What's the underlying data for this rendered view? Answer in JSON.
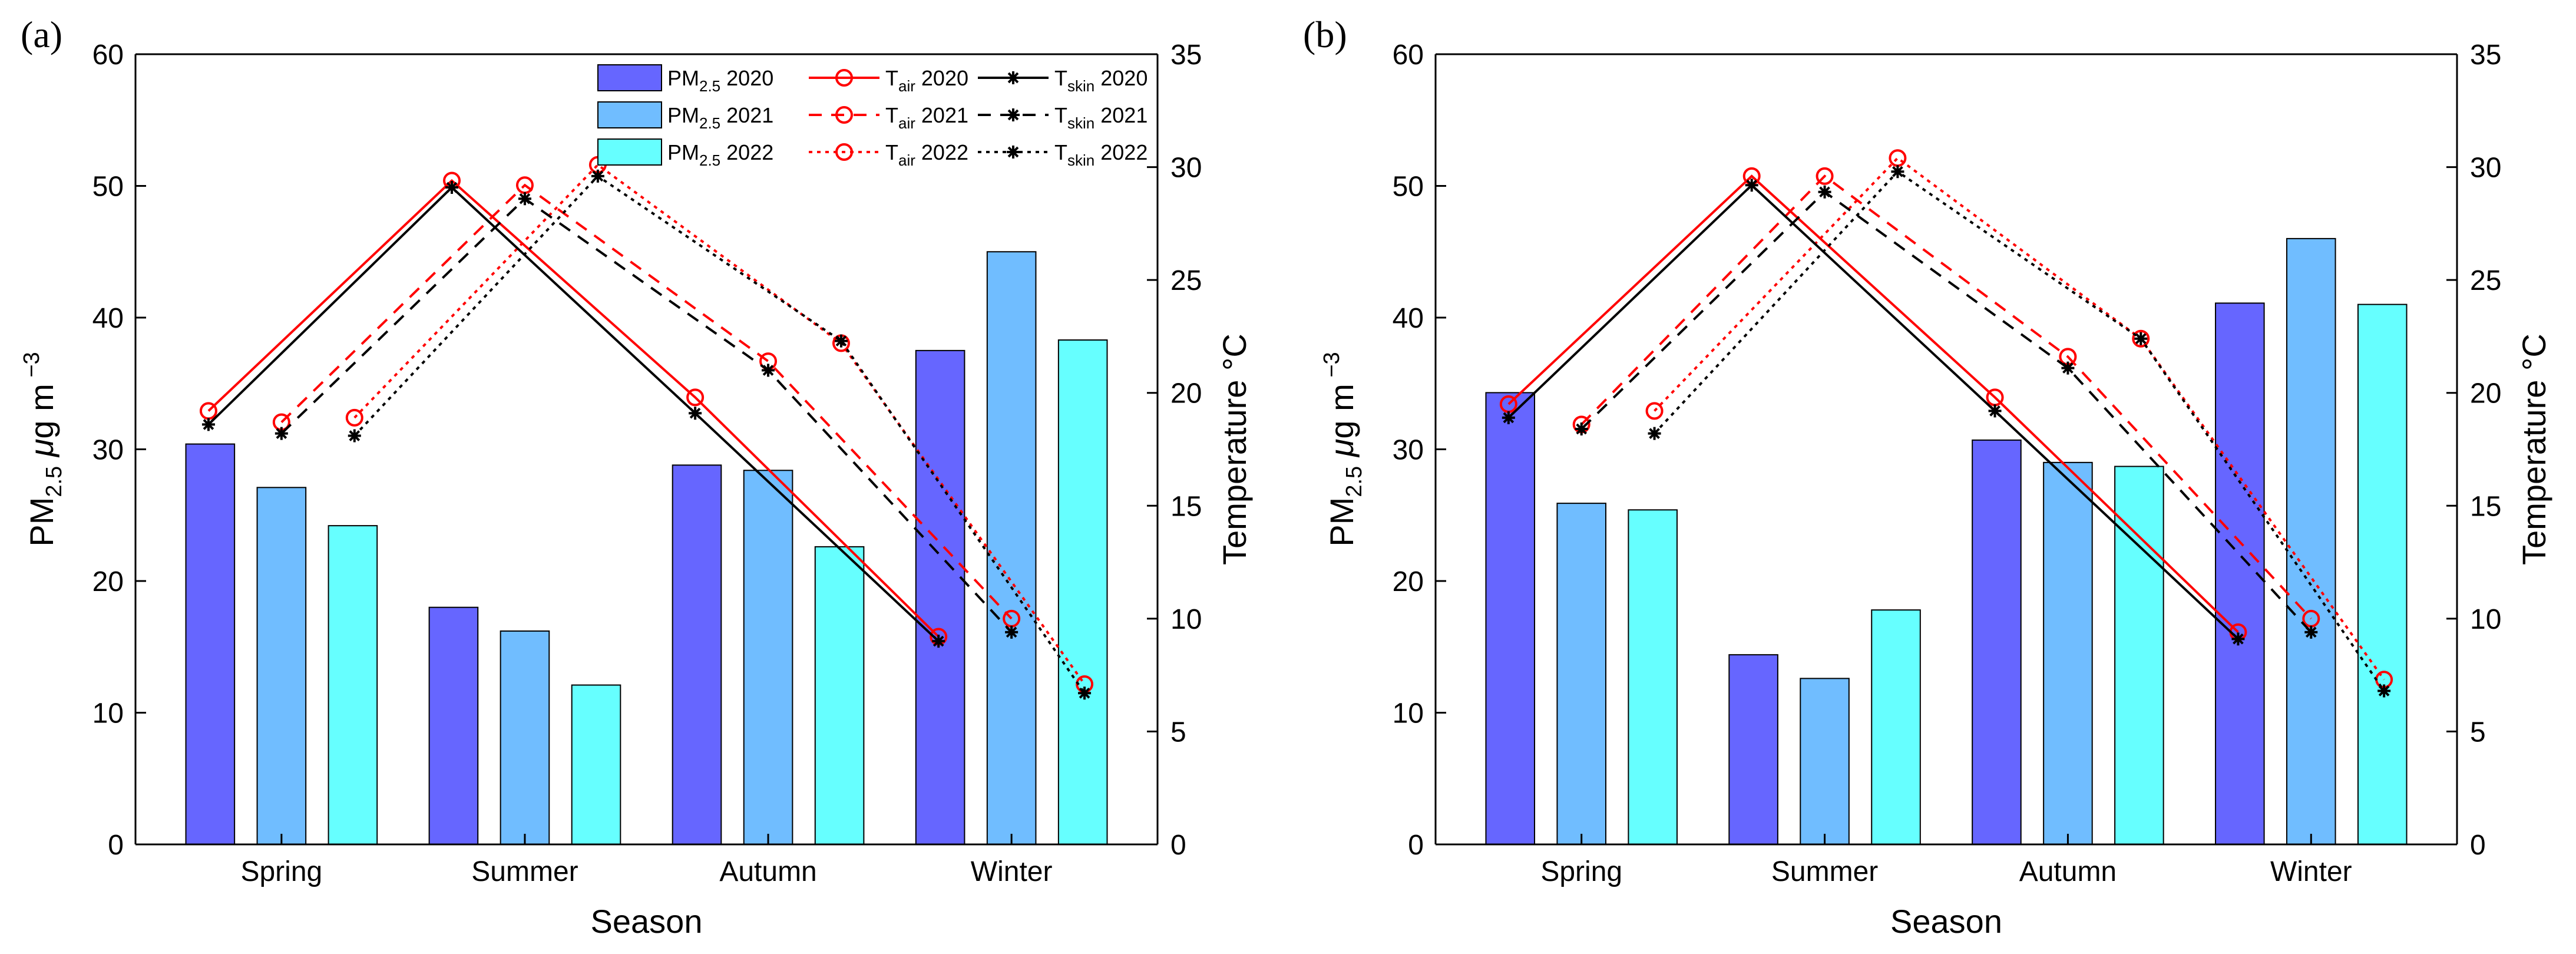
{
  "figure": {
    "shared": {
      "categories": [
        "Spring",
        "Summer",
        "Autumn",
        "Winter"
      ],
      "xlabel": "Season",
      "ylabel_left": "PM",
      "ylabel_left_sub": "2.5",
      "ylabel_left_unit_mu": "μ",
      "ylabel_left_unit": "g m",
      "ylabel_left_sup": "−3",
      "ylabel_right": "Temperature °C",
      "ylim_left": [
        0,
        60
      ],
      "yticks_left": [
        "0",
        "10",
        "20",
        "30",
        "40",
        "50",
        "60"
      ],
      "ylim_right": [
        0,
        35
      ],
      "yticks_right": [
        "0",
        "5",
        "10",
        "15",
        "20",
        "25",
        "30",
        "35"
      ]
    },
    "legend": {
      "pm": [
        {
          "base": "PM",
          "sub": "2.5",
          "year": " 2020"
        },
        {
          "base": "PM",
          "sub": "2.5",
          "year": " 2021"
        },
        {
          "base": "PM",
          "sub": "2.5",
          "year": " 2022"
        }
      ],
      "tair": [
        {
          "base": "T",
          "sub": "air",
          "year": " 2020"
        },
        {
          "base": "T",
          "sub": "air",
          "year": " 2021"
        },
        {
          "base": "T",
          "sub": "air",
          "year": " 2022"
        }
      ],
      "tskin": [
        {
          "base": "T",
          "sub": "skin",
          "year": " 2020"
        },
        {
          "base": "T",
          "sub": "skin",
          "year": " 2021"
        },
        {
          "base": "T",
          "sub": "skin",
          "year": " 2022"
        }
      ]
    },
    "colors": {
      "pm2020": "#6666ff",
      "pm2021": "#70bdff",
      "pm2022": "#66ffff",
      "tair": "#ff0000",
      "tskin": "#000000"
    }
  },
  "chart_data": [
    {
      "panel_label": "(a)",
      "type": "bar+line",
      "categories": [
        "Spring",
        "Summer",
        "Autumn",
        "Winter"
      ],
      "bar_series": [
        {
          "name": "PM2.5 2020",
          "values": [
            30.4,
            18.0,
            28.8,
            37.5
          ]
        },
        {
          "name": "PM2.5 2021",
          "values": [
            27.1,
            16.2,
            28.4,
            45.0
          ]
        },
        {
          "name": "PM2.5 2022",
          "values": [
            24.2,
            12.1,
            22.6,
            38.3
          ]
        }
      ],
      "line_series": [
        {
          "name": "Tair 2020",
          "axis": "right",
          "values": [
            19.2,
            29.4,
            19.8,
            9.2
          ]
        },
        {
          "name": "Tair 2021",
          "axis": "right",
          "values": [
            18.7,
            29.2,
            21.4,
            10.0
          ]
        },
        {
          "name": "Tair 2022",
          "axis": "right",
          "values": [
            18.9,
            30.1,
            22.2,
            7.1
          ]
        },
        {
          "name": "Tskin 2020",
          "axis": "right",
          "values": [
            18.6,
            29.1,
            19.1,
            9.0
          ]
        },
        {
          "name": "Tskin 2021",
          "axis": "right",
          "values": [
            18.2,
            28.6,
            21.0,
            9.4
          ]
        },
        {
          "name": "Tskin 2022",
          "axis": "right",
          "values": [
            18.1,
            29.6,
            22.3,
            6.7
          ]
        }
      ]
    },
    {
      "panel_label": "(b)",
      "type": "bar+line",
      "categories": [
        "Spring",
        "Summer",
        "Autumn",
        "Winter"
      ],
      "bar_series": [
        {
          "name": "PM2.5 2020",
          "values": [
            34.3,
            14.4,
            30.7,
            41.1
          ]
        },
        {
          "name": "PM2.5 2021",
          "values": [
            25.9,
            12.6,
            29.0,
            46.0
          ]
        },
        {
          "name": "PM2.5 2022",
          "values": [
            25.4,
            17.8,
            28.7,
            41.0
          ]
        }
      ],
      "line_series": [
        {
          "name": "Tair 2020",
          "axis": "right",
          "values": [
            19.5,
            29.6,
            19.8,
            9.4
          ]
        },
        {
          "name": "Tair 2021",
          "axis": "right",
          "values": [
            18.6,
            29.6,
            21.6,
            10.0
          ]
        },
        {
          "name": "Tair 2022",
          "axis": "right",
          "values": [
            19.2,
            30.4,
            22.4,
            7.3
          ]
        },
        {
          "name": "Tskin 2020",
          "axis": "right",
          "values": [
            18.9,
            29.2,
            19.2,
            9.1
          ]
        },
        {
          "name": "Tskin 2021",
          "axis": "right",
          "values": [
            18.4,
            28.9,
            21.1,
            9.4
          ]
        },
        {
          "name": "Tskin 2022",
          "axis": "right",
          "values": [
            18.2,
            29.8,
            22.4,
            6.8
          ]
        }
      ]
    }
  ]
}
